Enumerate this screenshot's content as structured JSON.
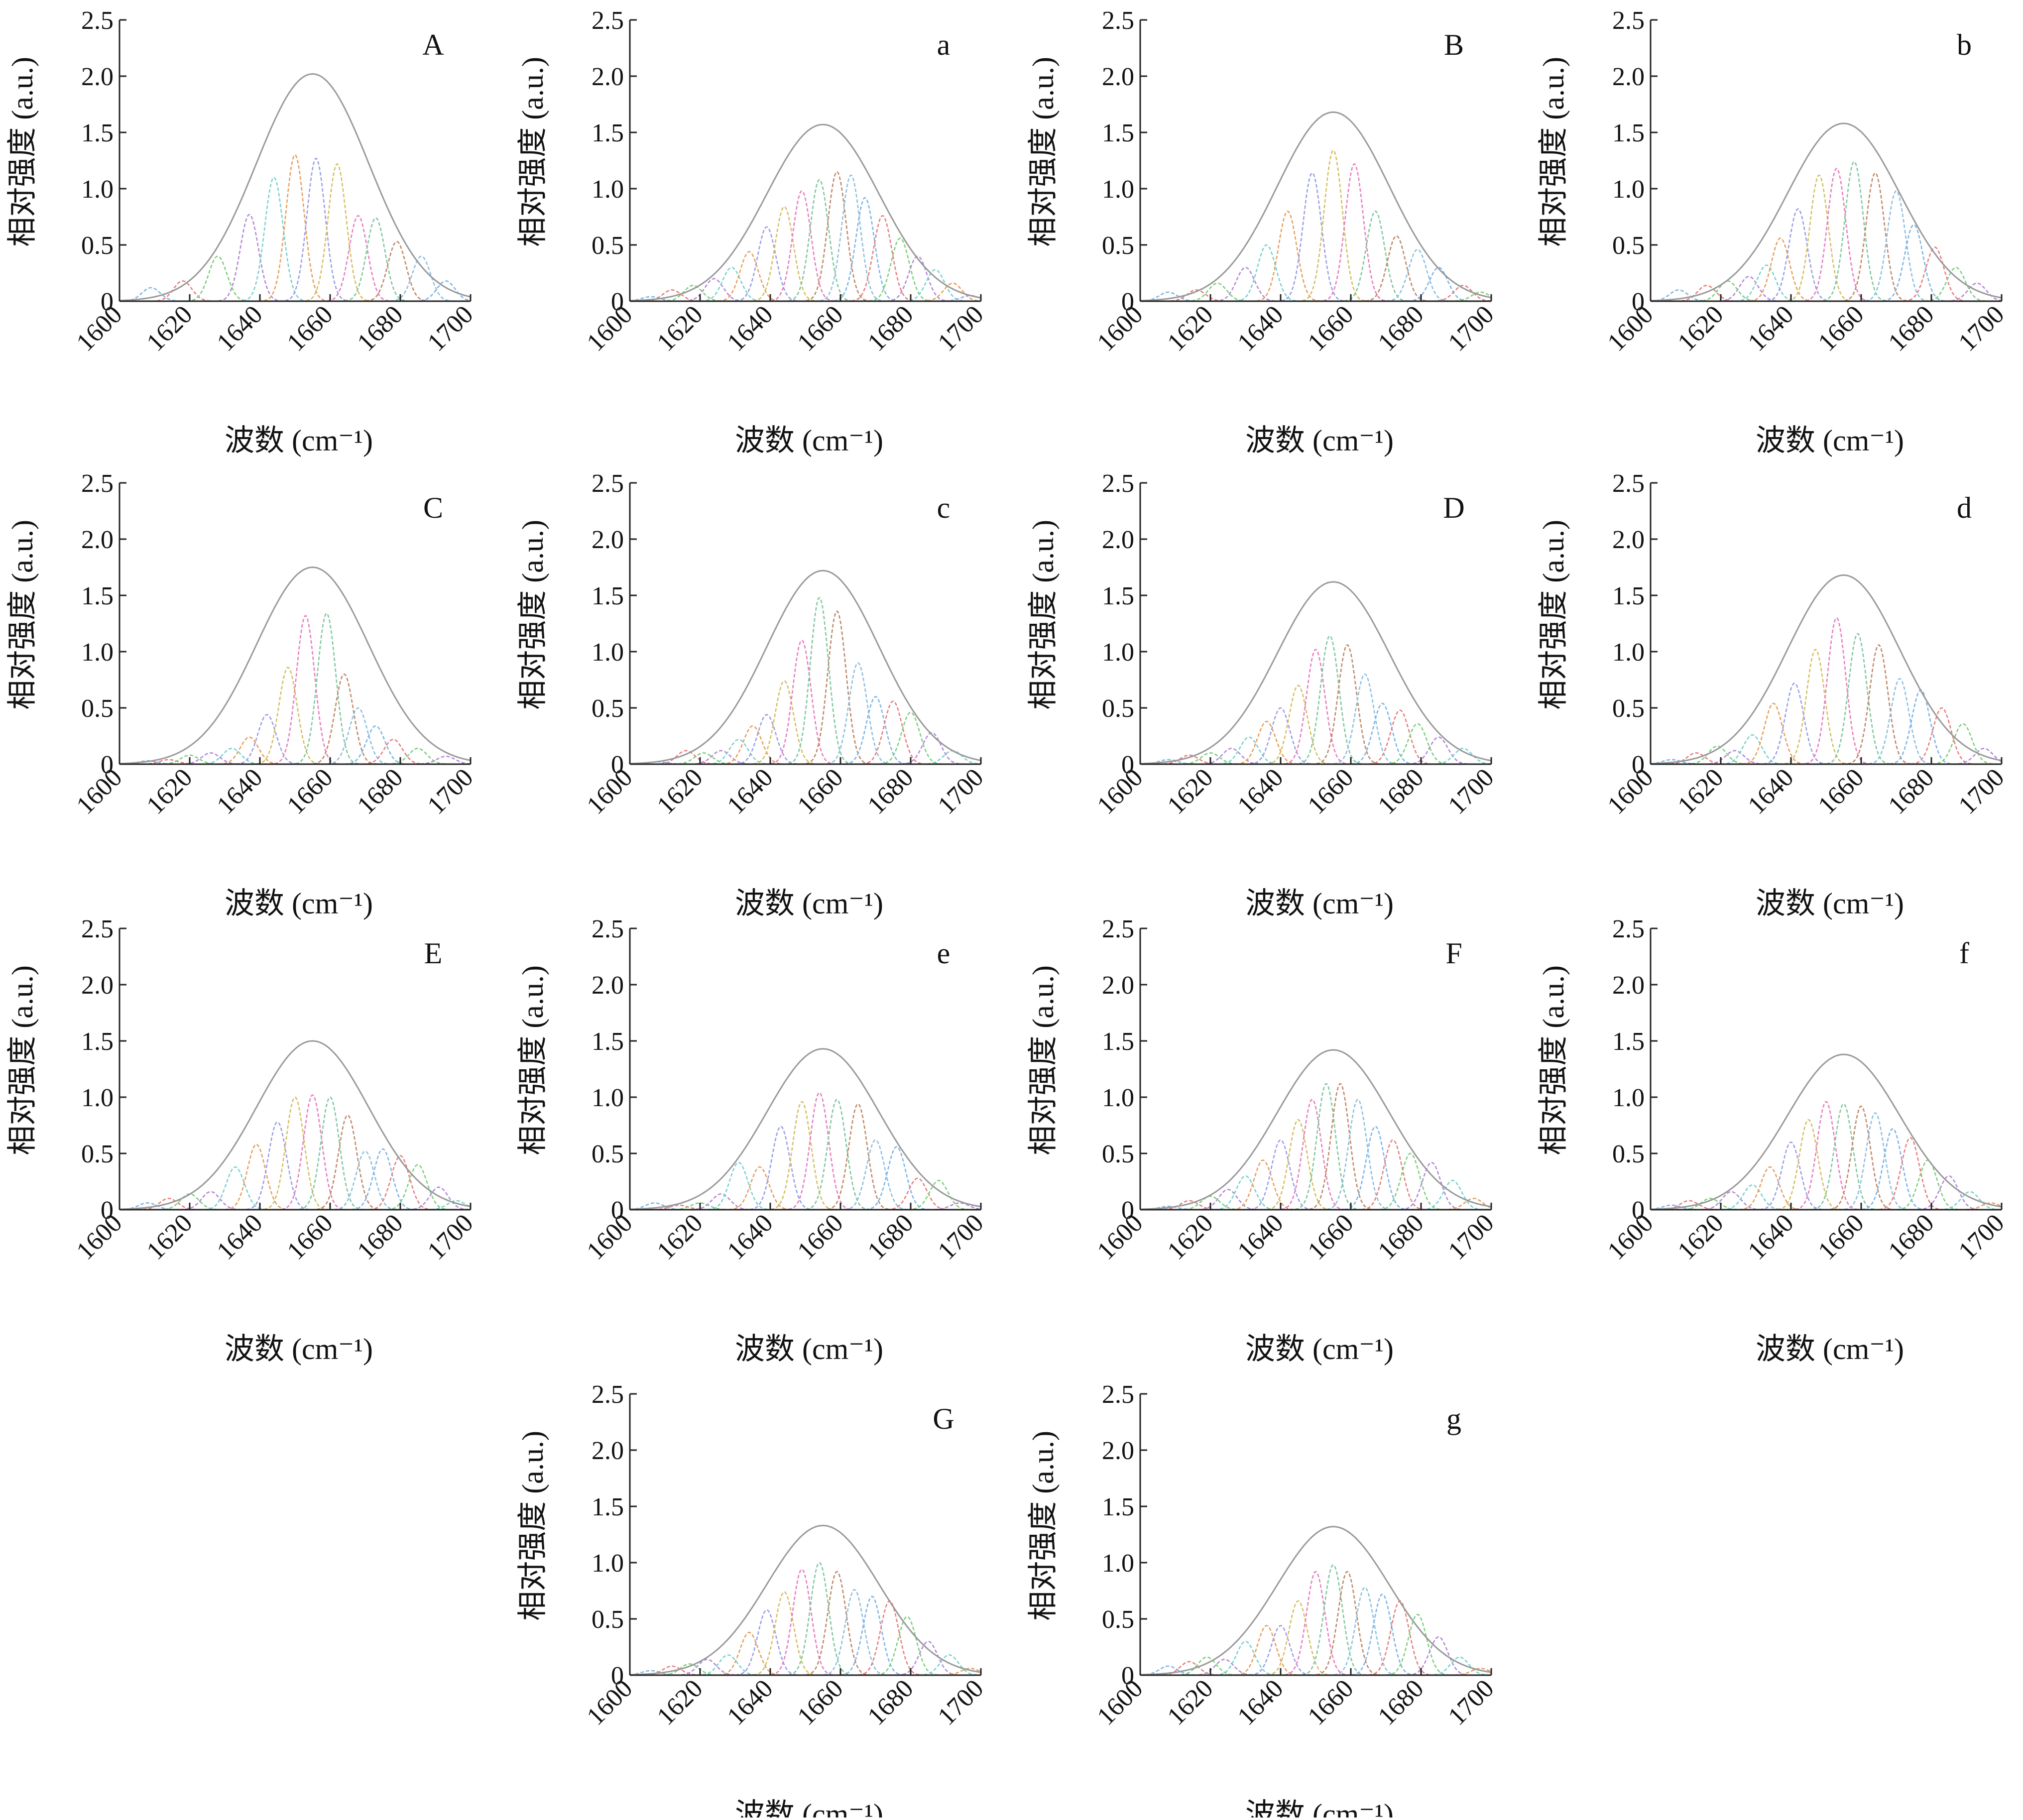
{
  "chart_data": {
    "type": "line",
    "xlabel": "波数 (cm⁻¹)",
    "ylabel": "相对强度 (a.u.)",
    "xlim": [
      1600,
      1700
    ],
    "ylim": [
      0,
      2.5
    ],
    "xticks": [
      "1600",
      "1620",
      "1640",
      "1660",
      "1680",
      "1700"
    ],
    "yticks": [
      "0",
      "0.5",
      "1.0",
      "1.5",
      "2.0",
      "2.5"
    ],
    "grid": false,
    "component_colors": [
      "#7fb6e8",
      "#e88080",
      "#7fd07f",
      "#b58ad8",
      "#7ad3cf",
      "#e8a060",
      "#9aa0e8",
      "#d4c060",
      "#e87fc0",
      "#80c8a0",
      "#c08a6a",
      "#8ec0e0"
    ],
    "envelope_color": "#9a9a9a",
    "panels": [
      {
        "label": "A",
        "envelope_max": 2.02,
        "bands": [
          {
            "c": 1609,
            "h": 0.12
          },
          {
            "c": 1618,
            "h": 0.18
          },
          {
            "c": 1628,
            "h": 0.4
          },
          {
            "c": 1637,
            "h": 0.77
          },
          {
            "c": 1644,
            "h": 1.1
          },
          {
            "c": 1650,
            "h": 1.3
          },
          {
            "c": 1656,
            "h": 1.27
          },
          {
            "c": 1662,
            "h": 1.22
          },
          {
            "c": 1668,
            "h": 0.76
          },
          {
            "c": 1673,
            "h": 0.74
          },
          {
            "c": 1679,
            "h": 0.53
          },
          {
            "c": 1686,
            "h": 0.4
          },
          {
            "c": 1693,
            "h": 0.18
          }
        ]
      },
      {
        "label": "a",
        "envelope_max": 1.57,
        "bands": [
          {
            "c": 1606,
            "h": 0.04
          },
          {
            "c": 1612,
            "h": 0.1
          },
          {
            "c": 1618,
            "h": 0.14
          },
          {
            "c": 1624,
            "h": 0.2
          },
          {
            "c": 1629,
            "h": 0.3
          },
          {
            "c": 1634,
            "h": 0.44
          },
          {
            "c": 1639,
            "h": 0.66
          },
          {
            "c": 1644,
            "h": 0.84
          },
          {
            "c": 1649,
            "h": 0.98
          },
          {
            "c": 1654,
            "h": 1.08
          },
          {
            "c": 1659,
            "h": 1.15
          },
          {
            "c": 1663,
            "h": 1.12
          },
          {
            "c": 1667,
            "h": 0.92
          },
          {
            "c": 1672,
            "h": 0.76
          },
          {
            "c": 1677,
            "h": 0.56
          },
          {
            "c": 1682,
            "h": 0.4
          },
          {
            "c": 1687,
            "h": 0.28
          },
          {
            "c": 1692,
            "h": 0.16
          },
          {
            "c": 1697,
            "h": 0.05
          }
        ]
      },
      {
        "label": "B",
        "envelope_max": 1.68,
        "bands": [
          {
            "c": 1608,
            "h": 0.08
          },
          {
            "c": 1616,
            "h": 0.1
          },
          {
            "c": 1622,
            "h": 0.16
          },
          {
            "c": 1630,
            "h": 0.3
          },
          {
            "c": 1636,
            "h": 0.5
          },
          {
            "c": 1642,
            "h": 0.8
          },
          {
            "c": 1649,
            "h": 1.14
          },
          {
            "c": 1655,
            "h": 1.34
          },
          {
            "c": 1661,
            "h": 1.22
          },
          {
            "c": 1667,
            "h": 0.8
          },
          {
            "c": 1673,
            "h": 0.58
          },
          {
            "c": 1679,
            "h": 0.46
          },
          {
            "c": 1685,
            "h": 0.3
          },
          {
            "c": 1692,
            "h": 0.14
          },
          {
            "c": 1697,
            "h": 0.08
          }
        ]
      },
      {
        "label": "b",
        "envelope_max": 1.58,
        "bands": [
          {
            "c": 1608,
            "h": 0.1
          },
          {
            "c": 1616,
            "h": 0.14
          },
          {
            "c": 1622,
            "h": 0.18
          },
          {
            "c": 1628,
            "h": 0.22
          },
          {
            "c": 1633,
            "h": 0.32
          },
          {
            "c": 1637,
            "h": 0.56
          },
          {
            "c": 1642,
            "h": 0.82
          },
          {
            "c": 1648,
            "h": 1.12
          },
          {
            "c": 1653,
            "h": 1.18
          },
          {
            "c": 1658,
            "h": 1.24
          },
          {
            "c": 1664,
            "h": 1.14
          },
          {
            "c": 1670,
            "h": 0.98
          },
          {
            "c": 1675,
            "h": 0.68
          },
          {
            "c": 1681,
            "h": 0.48
          },
          {
            "c": 1687,
            "h": 0.3
          },
          {
            "c": 1693,
            "h": 0.16
          }
        ]
      },
      {
        "label": "C",
        "envelope_max": 1.75,
        "bands": [
          {
            "c": 1608,
            "h": 0.03
          },
          {
            "c": 1614,
            "h": 0.04
          },
          {
            "c": 1620,
            "h": 0.08
          },
          {
            "c": 1626,
            "h": 0.1
          },
          {
            "c": 1632,
            "h": 0.14
          },
          {
            "c": 1637,
            "h": 0.24
          },
          {
            "c": 1642,
            "h": 0.44
          },
          {
            "c": 1648,
            "h": 0.86
          },
          {
            "c": 1653,
            "h": 1.32
          },
          {
            "c": 1659,
            "h": 1.34
          },
          {
            "c": 1664,
            "h": 0.8
          },
          {
            "c": 1668,
            "h": 0.5
          },
          {
            "c": 1673,
            "h": 0.34
          },
          {
            "c": 1678,
            "h": 0.22
          },
          {
            "c": 1685,
            "h": 0.14
          },
          {
            "c": 1693,
            "h": 0.07
          }
        ]
      },
      {
        "label": "c",
        "envelope_max": 1.72,
        "bands": [
          {
            "c": 1608,
            "h": 0.02
          },
          {
            "c": 1616,
            "h": 0.12
          },
          {
            "c": 1621,
            "h": 0.1
          },
          {
            "c": 1626,
            "h": 0.12
          },
          {
            "c": 1631,
            "h": 0.22
          },
          {
            "c": 1635,
            "h": 0.34
          },
          {
            "c": 1639,
            "h": 0.44
          },
          {
            "c": 1644,
            "h": 0.74
          },
          {
            "c": 1649,
            "h": 1.1
          },
          {
            "c": 1654,
            "h": 1.48
          },
          {
            "c": 1659,
            "h": 1.36
          },
          {
            "c": 1665,
            "h": 0.9
          },
          {
            "c": 1670,
            "h": 0.6
          },
          {
            "c": 1675,
            "h": 0.56
          },
          {
            "c": 1680,
            "h": 0.46
          },
          {
            "c": 1686,
            "h": 0.28
          },
          {
            "c": 1692,
            "h": 0.12
          }
        ]
      },
      {
        "label": "D",
        "envelope_max": 1.62,
        "bands": [
          {
            "c": 1608,
            "h": 0.04
          },
          {
            "c": 1614,
            "h": 0.08
          },
          {
            "c": 1620,
            "h": 0.1
          },
          {
            "c": 1626,
            "h": 0.14
          },
          {
            "c": 1631,
            "h": 0.24
          },
          {
            "c": 1636,
            "h": 0.38
          },
          {
            "c": 1640,
            "h": 0.5
          },
          {
            "c": 1645,
            "h": 0.7
          },
          {
            "c": 1650,
            "h": 1.02
          },
          {
            "c": 1654,
            "h": 1.14
          },
          {
            "c": 1659,
            "h": 1.06
          },
          {
            "c": 1664,
            "h": 0.8
          },
          {
            "c": 1669,
            "h": 0.54
          },
          {
            "c": 1674,
            "h": 0.48
          },
          {
            "c": 1679,
            "h": 0.36
          },
          {
            "c": 1685,
            "h": 0.24
          },
          {
            "c": 1692,
            "h": 0.14
          }
        ]
      },
      {
        "label": "d",
        "envelope_max": 1.68,
        "bands": [
          {
            "c": 1606,
            "h": 0.04
          },
          {
            "c": 1613,
            "h": 0.1
          },
          {
            "c": 1619,
            "h": 0.16
          },
          {
            "c": 1624,
            "h": 0.12
          },
          {
            "c": 1629,
            "h": 0.26
          },
          {
            "c": 1635,
            "h": 0.54
          },
          {
            "c": 1641,
            "h": 0.72
          },
          {
            "c": 1647,
            "h": 1.02
          },
          {
            "c": 1653,
            "h": 1.3
          },
          {
            "c": 1659,
            "h": 1.16
          },
          {
            "c": 1665,
            "h": 1.06
          },
          {
            "c": 1671,
            "h": 0.76
          },
          {
            "c": 1677,
            "h": 0.66
          },
          {
            "c": 1683,
            "h": 0.5
          },
          {
            "c": 1689,
            "h": 0.36
          },
          {
            "c": 1695,
            "h": 0.14
          }
        ]
      },
      {
        "label": "E",
        "envelope_max": 1.5,
        "bands": [
          {
            "c": 1608,
            "h": 0.06
          },
          {
            "c": 1614,
            "h": 0.1
          },
          {
            "c": 1620,
            "h": 0.14
          },
          {
            "c": 1626,
            "h": 0.16
          },
          {
            "c": 1633,
            "h": 0.38
          },
          {
            "c": 1639,
            "h": 0.58
          },
          {
            "c": 1645,
            "h": 0.78
          },
          {
            "c": 1650,
            "h": 1.0
          },
          {
            "c": 1655,
            "h": 1.02
          },
          {
            "c": 1660,
            "h": 1.0
          },
          {
            "c": 1665,
            "h": 0.84
          },
          {
            "c": 1670,
            "h": 0.52
          },
          {
            "c": 1675,
            "h": 0.54
          },
          {
            "c": 1680,
            "h": 0.48
          },
          {
            "c": 1685,
            "h": 0.4
          },
          {
            "c": 1691,
            "h": 0.2
          },
          {
            "c": 1696,
            "h": 0.08
          }
        ]
      },
      {
        "label": "e",
        "envelope_max": 1.43,
        "bands": [
          {
            "c": 1607,
            "h": 0.06
          },
          {
            "c": 1614,
            "h": 0.04
          },
          {
            "c": 1620,
            "h": 0.06
          },
          {
            "c": 1626,
            "h": 0.14
          },
          {
            "c": 1631,
            "h": 0.42
          },
          {
            "c": 1637,
            "h": 0.38
          },
          {
            "c": 1643,
            "h": 0.74
          },
          {
            "c": 1649,
            "h": 0.96
          },
          {
            "c": 1654,
            "h": 1.04
          },
          {
            "c": 1659,
            "h": 0.98
          },
          {
            "c": 1665,
            "h": 0.94
          },
          {
            "c": 1670,
            "h": 0.62
          },
          {
            "c": 1676,
            "h": 0.56
          },
          {
            "c": 1682,
            "h": 0.28
          },
          {
            "c": 1688,
            "h": 0.26
          },
          {
            "c": 1694,
            "h": 0.06
          }
        ]
      },
      {
        "label": "F",
        "envelope_max": 1.42,
        "bands": [
          {
            "c": 1608,
            "h": 0.03
          },
          {
            "c": 1614,
            "h": 0.08
          },
          {
            "c": 1620,
            "h": 0.12
          },
          {
            "c": 1625,
            "h": 0.18
          },
          {
            "c": 1630,
            "h": 0.3
          },
          {
            "c": 1635,
            "h": 0.44
          },
          {
            "c": 1640,
            "h": 0.62
          },
          {
            "c": 1645,
            "h": 0.8
          },
          {
            "c": 1649,
            "h": 0.98
          },
          {
            "c": 1653,
            "h": 1.12
          },
          {
            "c": 1657,
            "h": 1.12
          },
          {
            "c": 1662,
            "h": 0.98
          },
          {
            "c": 1667,
            "h": 0.74
          },
          {
            "c": 1672,
            "h": 0.62
          },
          {
            "c": 1677,
            "h": 0.5
          },
          {
            "c": 1683,
            "h": 0.42
          },
          {
            "c": 1689,
            "h": 0.26
          },
          {
            "c": 1695,
            "h": 0.1
          }
        ]
      },
      {
        "label": "f",
        "envelope_max": 1.38,
        "bands": [
          {
            "c": 1606,
            "h": 0.04
          },
          {
            "c": 1611,
            "h": 0.08
          },
          {
            "c": 1617,
            "h": 0.1
          },
          {
            "c": 1623,
            "h": 0.16
          },
          {
            "c": 1629,
            "h": 0.22
          },
          {
            "c": 1634,
            "h": 0.38
          },
          {
            "c": 1640,
            "h": 0.6
          },
          {
            "c": 1645,
            "h": 0.8
          },
          {
            "c": 1650,
            "h": 0.96
          },
          {
            "c": 1655,
            "h": 0.94
          },
          {
            "c": 1660,
            "h": 0.92
          },
          {
            "c": 1664,
            "h": 0.86
          },
          {
            "c": 1669,
            "h": 0.72
          },
          {
            "c": 1674,
            "h": 0.64
          },
          {
            "c": 1679,
            "h": 0.44
          },
          {
            "c": 1685,
            "h": 0.3
          },
          {
            "c": 1691,
            "h": 0.16
          },
          {
            "c": 1697,
            "h": 0.06
          }
        ]
      },
      {
        "label": "G",
        "envelope_max": 1.33,
        "bands": [
          {
            "c": 1606,
            "h": 0.04
          },
          {
            "c": 1612,
            "h": 0.08
          },
          {
            "c": 1617,
            "h": 0.1
          },
          {
            "c": 1622,
            "h": 0.14
          },
          {
            "c": 1628,
            "h": 0.18
          },
          {
            "c": 1634,
            "h": 0.38
          },
          {
            "c": 1639,
            "h": 0.58
          },
          {
            "c": 1644,
            "h": 0.74
          },
          {
            "c": 1649,
            "h": 0.94
          },
          {
            "c": 1654,
            "h": 1.0
          },
          {
            "c": 1659,
            "h": 0.92
          },
          {
            "c": 1664,
            "h": 0.76
          },
          {
            "c": 1669,
            "h": 0.7
          },
          {
            "c": 1674,
            "h": 0.66
          },
          {
            "c": 1679,
            "h": 0.52
          },
          {
            "c": 1685,
            "h": 0.3
          },
          {
            "c": 1691,
            "h": 0.18
          },
          {
            "c": 1697,
            "h": 0.06
          }
        ]
      },
      {
        "label": "g",
        "envelope_max": 1.32,
        "bands": [
          {
            "c": 1608,
            "h": 0.08
          },
          {
            "c": 1614,
            "h": 0.12
          },
          {
            "c": 1619,
            "h": 0.16
          },
          {
            "c": 1624,
            "h": 0.14
          },
          {
            "c": 1630,
            "h": 0.3
          },
          {
            "c": 1636,
            "h": 0.44
          },
          {
            "c": 1640,
            "h": 0.44
          },
          {
            "c": 1645,
            "h": 0.66
          },
          {
            "c": 1650,
            "h": 0.92
          },
          {
            "c": 1655,
            "h": 0.98
          },
          {
            "c": 1659,
            "h": 0.92
          },
          {
            "c": 1664,
            "h": 0.78
          },
          {
            "c": 1669,
            "h": 0.72
          },
          {
            "c": 1674,
            "h": 0.66
          },
          {
            "c": 1679,
            "h": 0.54
          },
          {
            "c": 1685,
            "h": 0.34
          },
          {
            "c": 1691,
            "h": 0.16
          },
          {
            "c": 1697,
            "h": 0.06
          }
        ]
      }
    ]
  }
}
